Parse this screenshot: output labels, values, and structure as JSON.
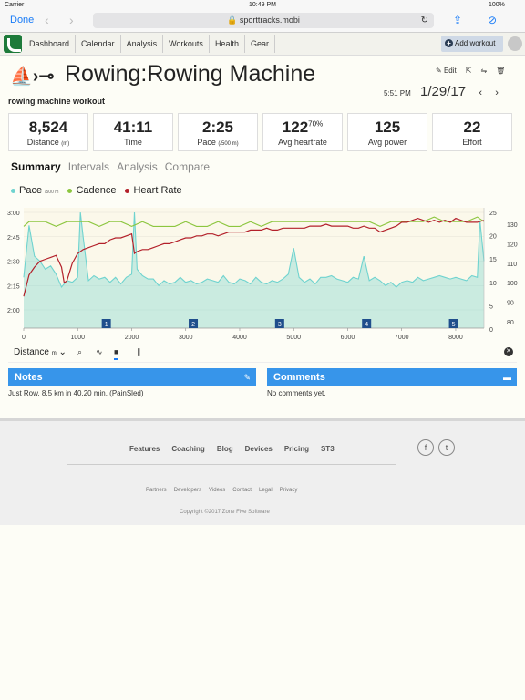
{
  "status": {
    "carrier": "Carrier",
    "time": "10:49 PM",
    "battery": "100%"
  },
  "browser": {
    "done": "Done",
    "url": "sporttracks.mobi"
  },
  "nav": {
    "items": [
      "Dashboard",
      "Calendar",
      "Analysis",
      "Workouts",
      "Health",
      "Gear"
    ],
    "add_workout": "Add workout"
  },
  "workout": {
    "title": "Rowing:Rowing Machine",
    "subtitle": "rowing machine workout",
    "edit": "Edit",
    "time": "5:51 PM",
    "date": "1/29/17"
  },
  "stats": [
    {
      "value": "8,524",
      "label": "Distance",
      "unit": "(m)"
    },
    {
      "value": "41:11",
      "label": "Time",
      "unit": ""
    },
    {
      "value": "2:25",
      "label": "Pace",
      "unit": "(/500 m)"
    },
    {
      "value": "122",
      "sup": "70%",
      "label": "Avg heartrate",
      "unit": ""
    },
    {
      "value": "125",
      "label": "Avg power",
      "unit": ""
    },
    {
      "value": "22",
      "label": "Effort",
      "unit": ""
    }
  ],
  "tabs": [
    "Summary",
    "Intervals",
    "Analysis",
    "Compare"
  ],
  "legend": [
    {
      "label": "Pace",
      "unit": "/500 m",
      "color": "#6fd3cf"
    },
    {
      "label": "Cadence",
      "unit": "",
      "color": "#8cc63f"
    },
    {
      "label": "Heart Rate",
      "unit": "",
      "color": "#b3202a"
    }
  ],
  "chart_data": {
    "type": "line",
    "xlabel": "Distance",
    "x_ticks": [
      "0",
      "1000",
      "2000",
      "3000",
      "4000",
      "5000",
      "6000",
      "7000",
      "8000"
    ],
    "xlim": [
      0,
      8524
    ],
    "pace_ticks": [
      "3:00",
      "2:45",
      "2:30",
      "2:15",
      "2:00"
    ],
    "cadence_ticks": [
      "25",
      "20",
      "15",
      "10",
      "5",
      "0"
    ],
    "hr_ticks": [
      "130",
      "120",
      "110",
      "100",
      "90",
      "80"
    ],
    "lap_markers": [
      "1",
      "2",
      "3",
      "4",
      "5"
    ],
    "lap_positions": [
      1530,
      3140,
      4740,
      6350,
      7960
    ],
    "series": [
      {
        "name": "Pace",
        "axis": "pace_seconds",
        "values": [
          [
            0,
            140
          ],
          [
            100,
            172
          ],
          [
            200,
            153
          ],
          [
            300,
            150
          ],
          [
            400,
            145
          ],
          [
            500,
            147
          ],
          [
            600,
            142
          ],
          [
            700,
            134
          ],
          [
            800,
            138
          ],
          [
            900,
            137
          ],
          [
            1000,
            140
          ],
          [
            1050,
            180
          ],
          [
            1100,
            165
          ],
          [
            1200,
            138
          ],
          [
            1300,
            141
          ],
          [
            1400,
            139
          ],
          [
            1500,
            140
          ],
          [
            1600,
            137
          ],
          [
            1700,
            140
          ],
          [
            1800,
            136
          ],
          [
            1900,
            140
          ],
          [
            2000,
            142
          ],
          [
            2050,
            180
          ],
          [
            2100,
            145
          ],
          [
            2200,
            141
          ],
          [
            2300,
            139
          ],
          [
            2400,
            139
          ],
          [
            2500,
            135
          ],
          [
            2600,
            138
          ],
          [
            2700,
            136
          ],
          [
            2800,
            137
          ],
          [
            2900,
            140
          ],
          [
            3000,
            137
          ],
          [
            3100,
            138
          ],
          [
            3200,
            136
          ],
          [
            3300,
            137
          ],
          [
            3400,
            139
          ],
          [
            3500,
            138
          ],
          [
            3600,
            137
          ],
          [
            3700,
            141
          ],
          [
            3800,
            137
          ],
          [
            3900,
            136
          ],
          [
            4000,
            139
          ],
          [
            4100,
            138
          ],
          [
            4200,
            136
          ],
          [
            4300,
            140
          ],
          [
            4400,
            137
          ],
          [
            4500,
            136
          ],
          [
            4600,
            138
          ],
          [
            4700,
            137
          ],
          [
            4800,
            139
          ],
          [
            4900,
            142
          ],
          [
            5000,
            158
          ],
          [
            5100,
            140
          ],
          [
            5200,
            137
          ],
          [
            5300,
            139
          ],
          [
            5400,
            136
          ],
          [
            5500,
            140
          ],
          [
            5600,
            140
          ],
          [
            5700,
            141
          ],
          [
            5800,
            139
          ],
          [
            5900,
            138
          ],
          [
            6000,
            137
          ],
          [
            6100,
            140
          ],
          [
            6200,
            139
          ],
          [
            6300,
            153
          ],
          [
            6400,
            138
          ],
          [
            6500,
            140
          ],
          [
            6600,
            138
          ],
          [
            6700,
            135
          ],
          [
            6800,
            137
          ],
          [
            6900,
            134
          ],
          [
            7000,
            137
          ],
          [
            7100,
            138
          ],
          [
            7200,
            137
          ],
          [
            7300,
            140
          ],
          [
            7400,
            138
          ],
          [
            7500,
            139
          ],
          [
            7600,
            140
          ],
          [
            7700,
            141
          ],
          [
            7800,
            140
          ],
          [
            7900,
            139
          ],
          [
            8000,
            140
          ],
          [
            8100,
            139
          ],
          [
            8200,
            138
          ],
          [
            8300,
            141
          ],
          [
            8400,
            140
          ],
          [
            8450,
            175
          ],
          [
            8524,
            150
          ]
        ]
      },
      {
        "name": "Cadence",
        "axis": "cadence",
        "values": [
          [
            0,
            22
          ],
          [
            100,
            23
          ],
          [
            200,
            23
          ],
          [
            400,
            23
          ],
          [
            600,
            22
          ],
          [
            800,
            23
          ],
          [
            1000,
            23
          ],
          [
            1200,
            23
          ],
          [
            1400,
            22
          ],
          [
            1600,
            23
          ],
          [
            1800,
            23
          ],
          [
            2000,
            22
          ],
          [
            2200,
            23
          ],
          [
            2400,
            22
          ],
          [
            2600,
            22
          ],
          [
            2800,
            22
          ],
          [
            3000,
            23
          ],
          [
            3200,
            22
          ],
          [
            3400,
            22
          ],
          [
            3600,
            23
          ],
          [
            3800,
            22
          ],
          [
            4000,
            22
          ],
          [
            4200,
            23
          ],
          [
            4400,
            22
          ],
          [
            4600,
            23
          ],
          [
            4800,
            23
          ],
          [
            5000,
            23
          ],
          [
            5200,
            23
          ],
          [
            5400,
            23
          ],
          [
            5600,
            23
          ],
          [
            5800,
            23
          ],
          [
            6000,
            23
          ],
          [
            6200,
            23
          ],
          [
            6400,
            23
          ],
          [
            6600,
            22
          ],
          [
            6800,
            23
          ],
          [
            7000,
            23
          ],
          [
            7200,
            23
          ],
          [
            7400,
            23
          ],
          [
            7600,
            24
          ],
          [
            7800,
            23
          ],
          [
            8000,
            23
          ],
          [
            8200,
            23
          ],
          [
            8400,
            24
          ],
          [
            8524,
            23
          ]
        ]
      },
      {
        "name": "Heart Rate",
        "axis": "hr",
        "values": [
          [
            0,
            93
          ],
          [
            100,
            104
          ],
          [
            200,
            108
          ],
          [
            300,
            111
          ],
          [
            400,
            112
          ],
          [
            500,
            113
          ],
          [
            600,
            114
          ],
          [
            700,
            108
          ],
          [
            750,
            100
          ],
          [
            800,
            101
          ],
          [
            900,
            110
          ],
          [
            1000,
            115
          ],
          [
            1100,
            117
          ],
          [
            1200,
            118
          ],
          [
            1300,
            119
          ],
          [
            1400,
            120
          ],
          [
            1500,
            120
          ],
          [
            1600,
            122
          ],
          [
            1700,
            123
          ],
          [
            1800,
            123
          ],
          [
            1900,
            124
          ],
          [
            2000,
            125
          ],
          [
            2050,
            115
          ],
          [
            2100,
            116
          ],
          [
            2200,
            117
          ],
          [
            2300,
            117
          ],
          [
            2400,
            118
          ],
          [
            2500,
            119
          ],
          [
            2600,
            120
          ],
          [
            2700,
            120
          ],
          [
            2800,
            121
          ],
          [
            2900,
            122
          ],
          [
            3000,
            123
          ],
          [
            3100,
            123
          ],
          [
            3200,
            124
          ],
          [
            3300,
            124
          ],
          [
            3400,
            125
          ],
          [
            3500,
            125
          ],
          [
            3600,
            124
          ],
          [
            3700,
            125
          ],
          [
            3800,
            126
          ],
          [
            3900,
            126
          ],
          [
            4000,
            126
          ],
          [
            4100,
            126
          ],
          [
            4200,
            127
          ],
          [
            4300,
            127
          ],
          [
            4400,
            127
          ],
          [
            4500,
            128
          ],
          [
            4600,
            127
          ],
          [
            4700,
            127
          ],
          [
            4800,
            128
          ],
          [
            4900,
            128
          ],
          [
            5000,
            128
          ],
          [
            5100,
            128
          ],
          [
            5200,
            128
          ],
          [
            5300,
            129
          ],
          [
            5400,
            129
          ],
          [
            5500,
            129
          ],
          [
            5600,
            130
          ],
          [
            5700,
            129
          ],
          [
            5800,
            129
          ],
          [
            5900,
            129
          ],
          [
            6000,
            129
          ],
          [
            6100,
            128
          ],
          [
            6200,
            128
          ],
          [
            6300,
            129
          ],
          [
            6400,
            128
          ],
          [
            6500,
            128
          ],
          [
            6600,
            126
          ],
          [
            6700,
            127
          ],
          [
            6800,
            128
          ],
          [
            6900,
            129
          ],
          [
            7000,
            131
          ],
          [
            7100,
            131
          ],
          [
            7200,
            132
          ],
          [
            7300,
            133
          ],
          [
            7400,
            132
          ],
          [
            7500,
            131
          ],
          [
            7600,
            132
          ],
          [
            7700,
            131
          ],
          [
            7800,
            132
          ],
          [
            7900,
            131
          ],
          [
            8000,
            133
          ],
          [
            8100,
            132
          ],
          [
            8200,
            131
          ],
          [
            8300,
            131
          ],
          [
            8400,
            131
          ],
          [
            8524,
            132
          ]
        ]
      }
    ]
  },
  "chartbar": {
    "selector": "Distance",
    "unit": "m"
  },
  "notes": {
    "title": "Notes",
    "text": "Just Row. 8.5 km in 40.20 min. (PainSled)"
  },
  "comments": {
    "title": "Comments",
    "text": "No comments yet."
  },
  "footer": {
    "links": [
      "Features",
      "Coaching",
      "Blog",
      "Devices",
      "Pricing",
      "ST3"
    ],
    "links2": [
      "Partners",
      "Developers",
      "Videos",
      "Contact",
      "Legal",
      "Privacy"
    ],
    "copyright": "Copyright ©2017 Zone Five Software"
  }
}
